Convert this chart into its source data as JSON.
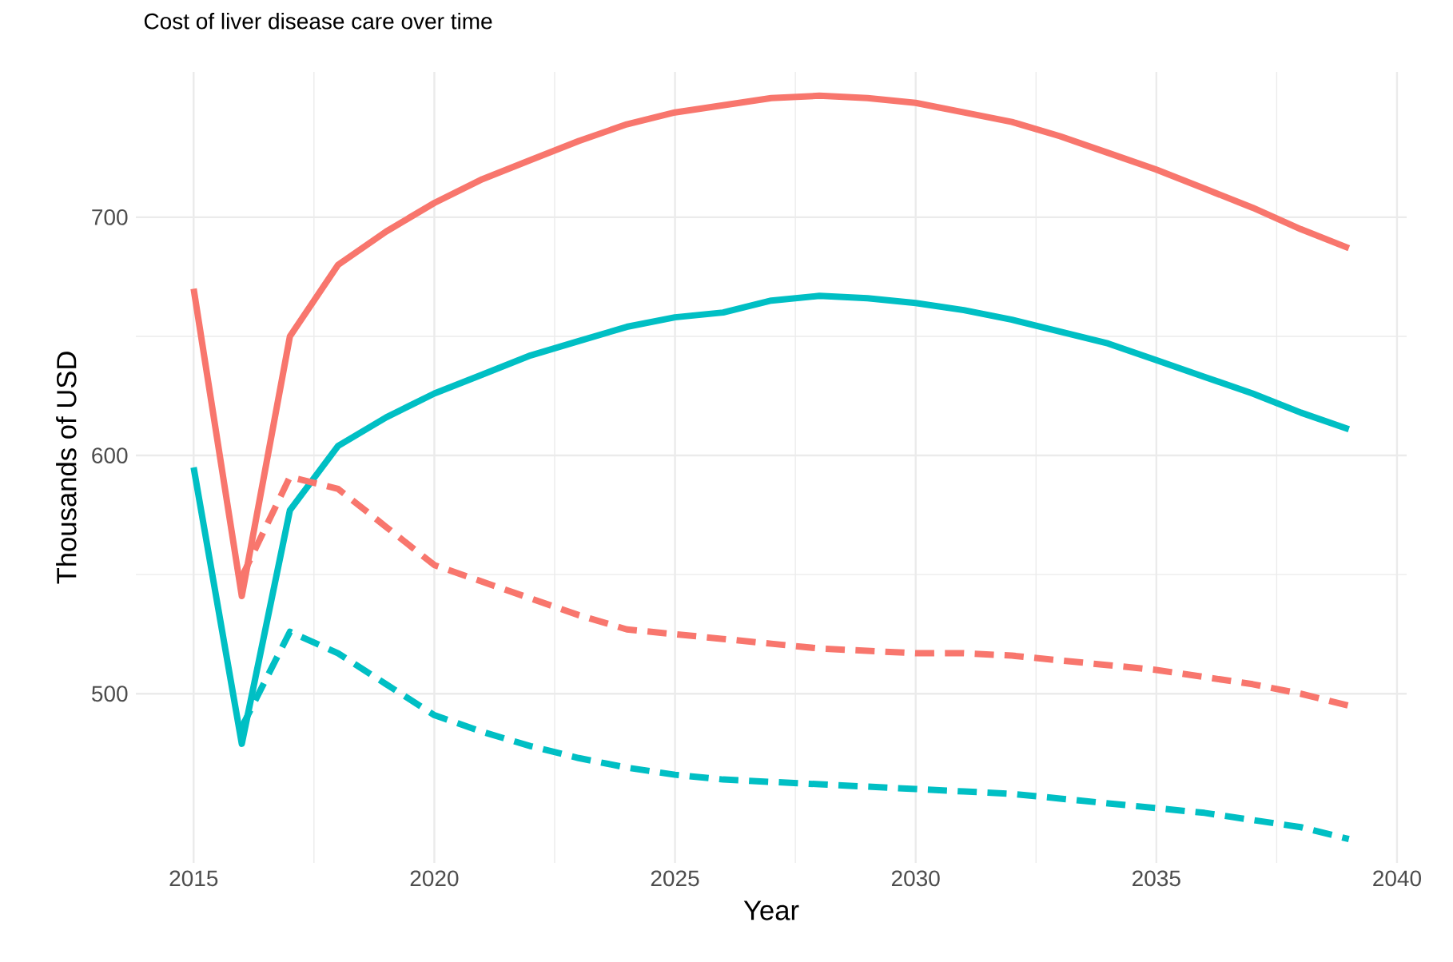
{
  "chart_data": {
    "type": "line",
    "title": "Cost of liver disease care over time",
    "xlabel": "Year",
    "ylabel": "Thousands of USD",
    "xlim": [
      2013.8,
      2040.2
    ],
    "ylim": [
      429,
      761
    ],
    "xticks": [
      2015,
      2020,
      2025,
      2030,
      2035,
      2040
    ],
    "yticks": [
      500,
      600,
      700
    ],
    "grid": true,
    "marker": "none",
    "series": [
      {
        "color": "#f8766d",
        "line_style": "solid",
        "x": [
          2015,
          2016,
          2017,
          2018,
          2019,
          2020,
          2021,
          2022,
          2023,
          2024,
          2025,
          2026,
          2027,
          2028,
          2029,
          2030,
          2031,
          2032,
          2033,
          2034,
          2035,
          2036,
          2037,
          2038,
          2039
        ],
        "values": [
          670,
          541,
          650,
          680,
          694,
          706,
          716,
          724,
          732,
          739,
          744,
          747,
          750,
          751,
          750,
          748,
          744,
          740,
          734,
          727,
          720,
          712,
          704,
          695,
          687
        ]
      },
      {
        "color": "#00bfc4",
        "line_style": "solid",
        "x": [
          2015,
          2016,
          2017,
          2018,
          2019,
          2020,
          2021,
          2022,
          2023,
          2024,
          2025,
          2026,
          2027,
          2028,
          2029,
          2030,
          2031,
          2032,
          2033,
          2034,
          2035,
          2036,
          2037,
          2038,
          2039
        ],
        "values": [
          595,
          479,
          577,
          604,
          616,
          626,
          634,
          642,
          648,
          654,
          658,
          660,
          665,
          667,
          666,
          664,
          661,
          657,
          652,
          647,
          640,
          633,
          626,
          618,
          611
        ]
      },
      {
        "color": "#f8766d",
        "line_style": "dashed",
        "x": [
          2016,
          2017,
          2018,
          2019,
          2020,
          2021,
          2022,
          2023,
          2024,
          2025,
          2026,
          2027,
          2028,
          2029,
          2030,
          2031,
          2032,
          2033,
          2034,
          2035,
          2036,
          2037,
          2038,
          2039
        ],
        "values": [
          549,
          591,
          586,
          570,
          554,
          547,
          540,
          533,
          527,
          525,
          523,
          521,
          519,
          518,
          517,
          517,
          516,
          514,
          512,
          510,
          507,
          504,
          500,
          495
        ]
      },
      {
        "color": "#00bfc4",
        "line_style": "dashed",
        "x": [
          2016,
          2017,
          2018,
          2019,
          2020,
          2021,
          2022,
          2023,
          2024,
          2025,
          2026,
          2027,
          2028,
          2029,
          2030,
          2031,
          2032,
          2033,
          2034,
          2035,
          2036,
          2037,
          2038,
          2039
        ],
        "values": [
          486,
          526,
          517,
          504,
          491,
          484,
          478,
          473,
          469,
          466,
          464,
          463,
          462,
          461,
          460,
          459,
          458,
          456,
          454,
          452,
          450,
          447,
          444,
          439
        ]
      }
    ]
  }
}
